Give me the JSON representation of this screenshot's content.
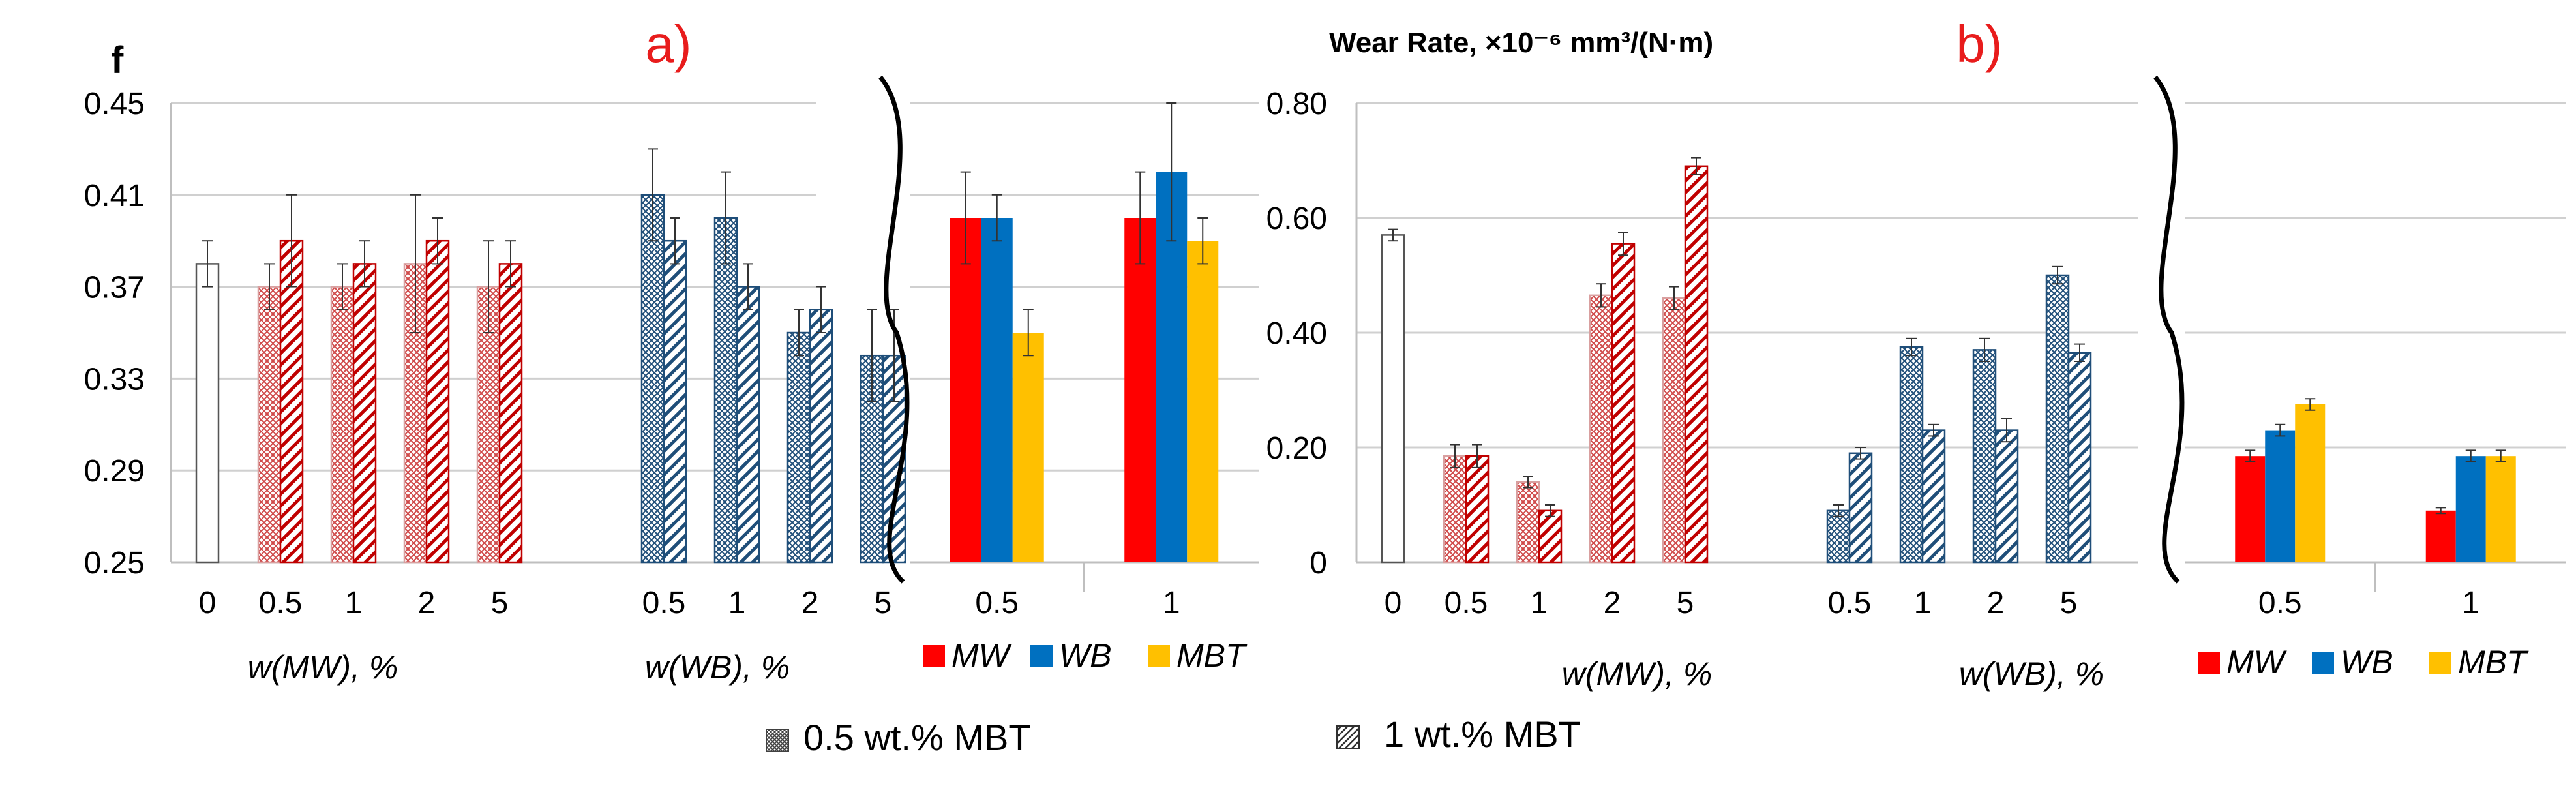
{
  "figure": {
    "bottom_legend": [
      {
        "label": "0.5 wt.% MBT",
        "pattern": "crosshatch"
      },
      {
        "label": "1 wt.% MBT",
        "pattern": "diagonal"
      }
    ]
  },
  "colors": {
    "MW": "#ff0000",
    "WB": "#0070c0",
    "MBT": "#ffc000",
    "MW_hatch": "#c00000",
    "WB_hatch": "#1f4e79",
    "grid": "#d0d0d0",
    "axis": "#bfbfbf"
  },
  "chart_data": [
    {
      "panel": "a",
      "type": "bar",
      "panel_label": "a)",
      "corner_label": "f",
      "title": "",
      "ylabel": "f",
      "ylim": [
        0.25,
        0.45
      ],
      "yticks": [
        "0.25",
        "0.29",
        "0.33",
        "0.37",
        "0.41",
        "0.45"
      ],
      "grid": true,
      "main": {
        "groups": [
          {
            "tick": "0",
            "section": "base",
            "bars": [
              {
                "value": 0.38,
                "err": 0.01,
                "pattern": "blank"
              }
            ]
          },
          {
            "tick": "0.5",
            "section": "MW",
            "bars": [
              {
                "value": 0.37,
                "err": 0.01,
                "pattern": "crosshatch"
              },
              {
                "value": 0.39,
                "err": 0.02,
                "pattern": "diagonal"
              }
            ]
          },
          {
            "tick": "1",
            "section": "MW",
            "bars": [
              {
                "value": 0.37,
                "err": 0.01,
                "pattern": "crosshatch"
              },
              {
                "value": 0.38,
                "err": 0.01,
                "pattern": "diagonal"
              }
            ]
          },
          {
            "tick": "2",
            "section": "MW",
            "bars": [
              {
                "value": 0.38,
                "err": 0.03,
                "pattern": "crosshatch"
              },
              {
                "value": 0.39,
                "err": 0.01,
                "pattern": "diagonal"
              }
            ]
          },
          {
            "tick": "5",
            "section": "MW",
            "bars": [
              {
                "value": 0.37,
                "err": 0.02,
                "pattern": "crosshatch"
              },
              {
                "value": 0.38,
                "err": 0.01,
                "pattern": "diagonal"
              }
            ]
          },
          {
            "tick": "0.5",
            "section": "WB",
            "bars": [
              {
                "value": 0.41,
                "err": 0.02,
                "pattern": "crosshatch"
              },
              {
                "value": 0.39,
                "err": 0.01,
                "pattern": "diagonal"
              }
            ]
          },
          {
            "tick": "1",
            "section": "WB",
            "bars": [
              {
                "value": 0.4,
                "err": 0.02,
                "pattern": "crosshatch"
              },
              {
                "value": 0.37,
                "err": 0.01,
                "pattern": "diagonal"
              }
            ]
          },
          {
            "tick": "2",
            "section": "WB",
            "bars": [
              {
                "value": 0.35,
                "err": 0.01,
                "pattern": "crosshatch"
              },
              {
                "value": 0.36,
                "err": 0.01,
                "pattern": "diagonal"
              }
            ]
          },
          {
            "tick": "5",
            "section": "WB",
            "bars": [
              {
                "value": 0.34,
                "err": 0.02,
                "pattern": "crosshatch"
              },
              {
                "value": 0.34,
                "err": 0.02,
                "pattern": "diagonal"
              }
            ]
          }
        ],
        "xlabels": [
          "w(MW), %",
          "w(WB), %"
        ]
      },
      "inset": {
        "categories": [
          "0.5",
          "1"
        ],
        "series": [
          {
            "name": "MW",
            "values": [
              0.4,
              0.4
            ],
            "errors": [
              0.02,
              0.02
            ]
          },
          {
            "name": "WB",
            "values": [
              0.4,
              0.42
            ],
            "errors": [
              0.01,
              0.03
            ]
          },
          {
            "name": "MBT",
            "values": [
              0.35,
              0.39
            ],
            "errors": [
              0.01,
              0.01
            ]
          }
        ],
        "legend": [
          "MW",
          "WB",
          "MBT"
        ]
      }
    },
    {
      "panel": "b",
      "type": "bar",
      "panel_label": "b)",
      "title": "Wear Rate, ×10⁻⁶ mm³/(N·m)",
      "ylabel": "Wear Rate, ×10⁻⁶ mm³/(N·m)",
      "ylim": [
        0,
        0.8
      ],
      "yticks": [
        "0",
        "0.20",
        "0.40",
        "0.60",
        "0.80"
      ],
      "grid": true,
      "main": {
        "groups": [
          {
            "tick": "0",
            "section": "base",
            "bars": [
              {
                "value": 0.57,
                "err": 0.01,
                "pattern": "blank"
              }
            ]
          },
          {
            "tick": "0.5",
            "section": "MW",
            "bars": [
              {
                "value": 0.185,
                "err": 0.02,
                "pattern": "crosshatch"
              },
              {
                "value": 0.185,
                "err": 0.02,
                "pattern": "diagonal"
              }
            ]
          },
          {
            "tick": "1",
            "section": "MW",
            "bars": [
              {
                "value": 0.14,
                "err": 0.01,
                "pattern": "crosshatch"
              },
              {
                "value": 0.09,
                "err": 0.01,
                "pattern": "diagonal"
              }
            ]
          },
          {
            "tick": "2",
            "section": "MW",
            "bars": [
              {
                "value": 0.465,
                "err": 0.02,
                "pattern": "crosshatch"
              },
              {
                "value": 0.555,
                "err": 0.02,
                "pattern": "diagonal"
              }
            ]
          },
          {
            "tick": "5",
            "section": "MW",
            "bars": [
              {
                "value": 0.46,
                "err": 0.02,
                "pattern": "crosshatch"
              },
              {
                "value": 0.69,
                "err": 0.015,
                "pattern": "diagonal"
              }
            ]
          },
          {
            "tick": "0.5",
            "section": "WB",
            "bars": [
              {
                "value": 0.09,
                "err": 0.01,
                "pattern": "crosshatch"
              },
              {
                "value": 0.19,
                "err": 0.01,
                "pattern": "diagonal"
              }
            ]
          },
          {
            "tick": "1",
            "section": "WB",
            "bars": [
              {
                "value": 0.375,
                "err": 0.015,
                "pattern": "crosshatch"
              },
              {
                "value": 0.23,
                "err": 0.01,
                "pattern": "diagonal"
              }
            ]
          },
          {
            "tick": "2",
            "section": "WB",
            "bars": [
              {
                "value": 0.37,
                "err": 0.02,
                "pattern": "crosshatch"
              },
              {
                "value": 0.23,
                "err": 0.02,
                "pattern": "diagonal"
              }
            ]
          },
          {
            "tick": "5",
            "section": "WB",
            "bars": [
              {
                "value": 0.5,
                "err": 0.015,
                "pattern": "crosshatch"
              },
              {
                "value": 0.365,
                "err": 0.015,
                "pattern": "diagonal"
              }
            ]
          }
        ],
        "xlabels": [
          "w(MW), %",
          "w(WB), %"
        ]
      },
      "inset": {
        "categories": [
          "0.5",
          "1"
        ],
        "series": [
          {
            "name": "MW",
            "values": [
              0.185,
              0.09
            ],
            "errors": [
              0.01,
              0.005
            ]
          },
          {
            "name": "WB",
            "values": [
              0.23,
              0.185
            ],
            "errors": [
              0.01,
              0.01
            ]
          },
          {
            "name": "MBT",
            "values": [
              0.275,
              0.185
            ],
            "errors": [
              0.01,
              0.01
            ]
          }
        ],
        "legend": [
          "MW",
          "WB",
          "MBT"
        ]
      }
    }
  ]
}
